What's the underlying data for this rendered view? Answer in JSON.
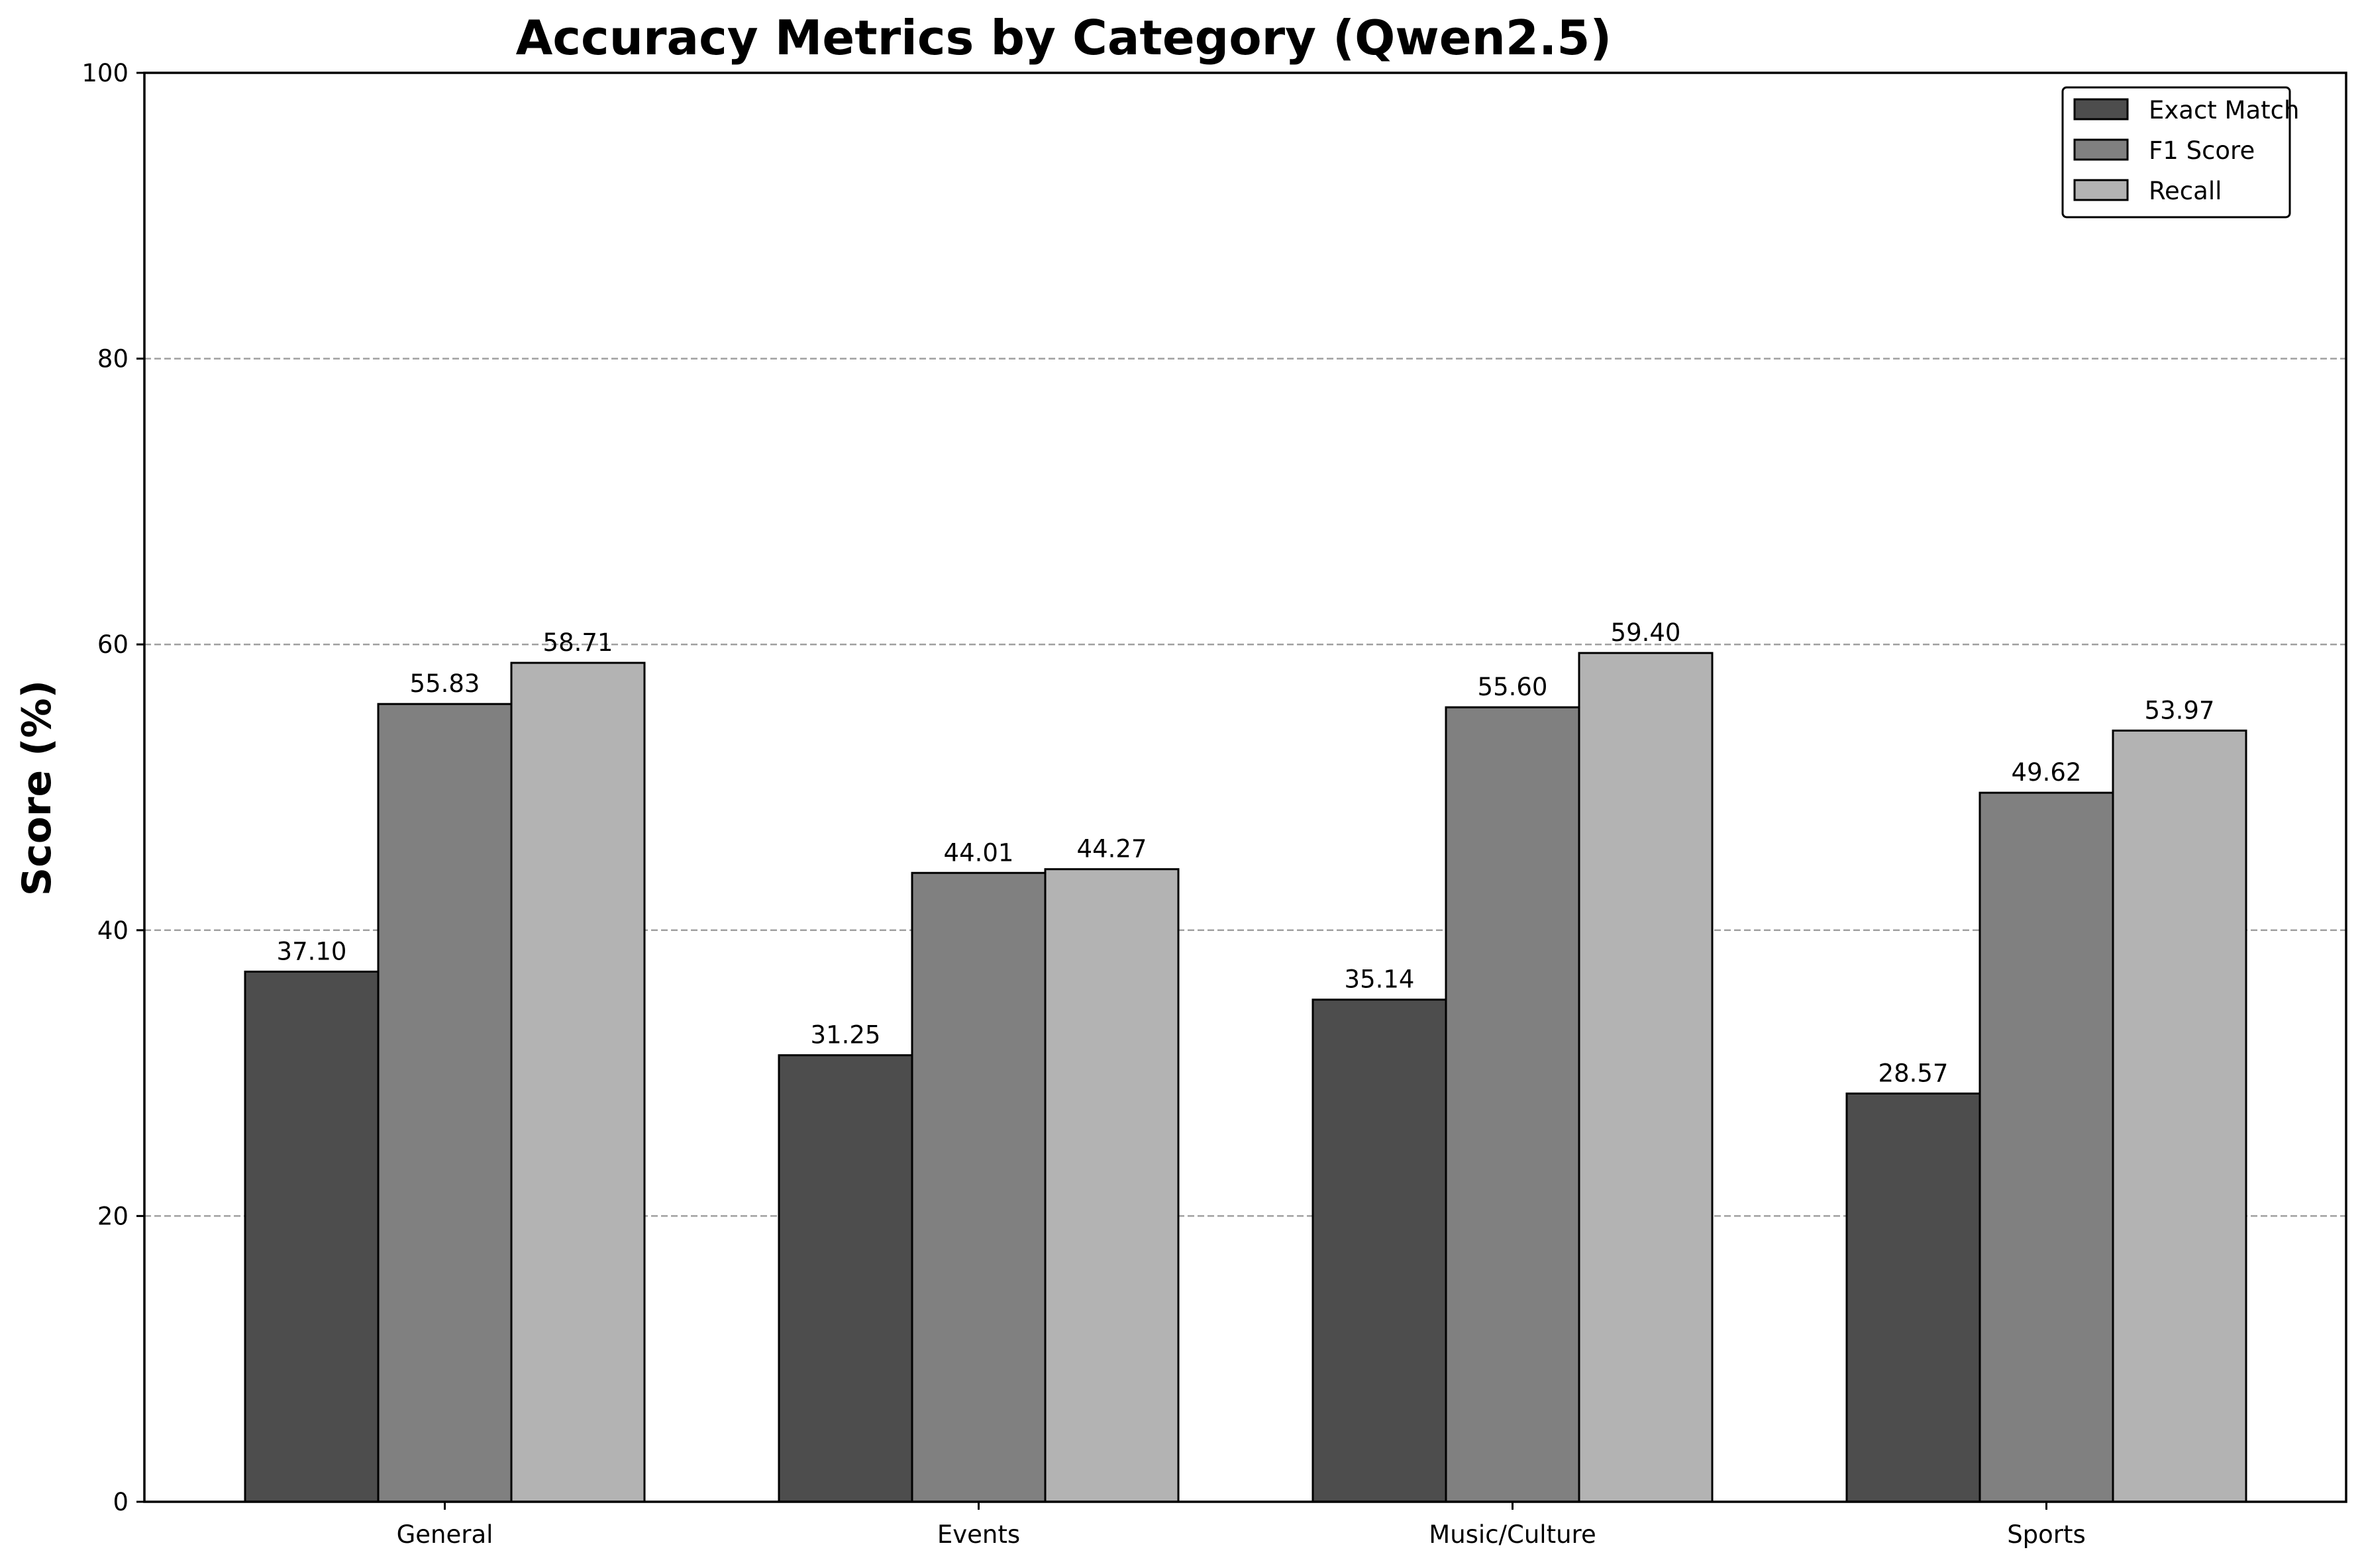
{
  "chart_data": {
    "type": "bar",
    "title": "Accuracy Metrics by Category (Qwen2.5)",
    "xlabel": "",
    "ylabel": "Score (%)",
    "ylim": [
      0,
      100
    ],
    "yticks": [
      0,
      20,
      40,
      60,
      80,
      100
    ],
    "categories": [
      "General",
      "Events",
      "Music/Culture",
      "Sports"
    ],
    "series": [
      {
        "name": "Exact Match",
        "color": "#4d4d4d",
        "values": [
          37.1,
          31.25,
          35.14,
          28.57
        ],
        "labels": [
          "37.10",
          "31.25",
          "35.14",
          "28.57"
        ]
      },
      {
        "name": "F1 Score",
        "color": "#808080",
        "values": [
          55.83,
          44.01,
          55.6,
          49.62
        ],
        "labels": [
          "55.83",
          "44.01",
          "55.60",
          "49.62"
        ]
      },
      {
        "name": "Recall",
        "color": "#b3b3b3",
        "values": [
          58.71,
          44.27,
          59.4,
          53.97
        ],
        "labels": [
          "58.71",
          "44.27",
          "59.40",
          "53.97"
        ]
      }
    ],
    "grid": "y-dashed",
    "legend_position": "top-right"
  }
}
